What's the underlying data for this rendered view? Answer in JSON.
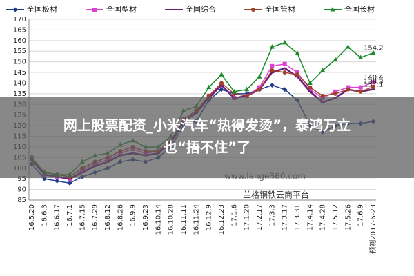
{
  "chart_data": {
    "type": "line",
    "categories": [
      "16.5.20",
      "16.6.3",
      "16.6.17",
      "16.7.1",
      "16.7.15",
      "16.7.29",
      "16.8.12",
      "16.8.26",
      "16.9.9",
      "16.9.23",
      "16.10.14",
      "16.10.28",
      "16.11.11",
      "16.11.24",
      "16.12.9",
      "16.12.23",
      "17.1.6",
      "17.1.20",
      "17.2.17",
      "17.3.3",
      "17.3.17",
      "17.3.31",
      "17.4.14",
      "17.4.28",
      "17.5.12",
      "17.5.26",
      "17.6.9",
      "预测2017-6-23"
    ],
    "series": [
      {
        "name": "全国板材",
        "color": "#1f3d8c",
        "marker": "diamond",
        "values": [
          102,
          95,
          94,
          93,
          96,
          98,
          100,
          103,
          104,
          103,
          105,
          110,
          120,
          122,
          132,
          137,
          135,
          135,
          137,
          139,
          137,
          132,
          120,
          117,
          120,
          121,
          121,
          122
        ]
      },
      {
        "name": "全国型材",
        "color": "#e040d0",
        "marker": "square",
        "values": [
          105,
          97,
          96,
          95,
          99,
          102,
          104,
          107,
          109,
          107,
          108,
          112,
          123,
          127,
          134,
          139,
          133,
          134,
          138,
          148,
          149,
          145,
          137,
          133,
          136,
          138,
          138,
          140.4
        ]
      },
      {
        "name": "全国综合",
        "color": "#6a1f7a",
        "marker": "dash",
        "values": [
          104,
          97,
          96,
          95,
          98,
          101,
          103,
          106,
          107,
          106,
          107,
          112,
          122,
          126,
          133,
          139,
          133,
          134,
          137,
          145,
          147,
          143,
          136,
          131,
          133,
          137,
          136,
          137.1
        ]
      },
      {
        "name": "全国管材",
        "color": "#a0402a",
        "marker": "circle",
        "values": [
          104,
          98,
          97,
          96,
          100,
          103,
          105,
          108,
          110,
          108,
          108,
          113,
          123,
          127,
          134,
          140,
          135,
          134,
          137,
          146,
          145,
          144,
          138,
          134,
          135,
          137,
          136,
          138.3
        ]
      },
      {
        "name": "全国长材",
        "color": "#1a8a2a",
        "marker": "triangle",
        "values": [
          105,
          98,
          97,
          97,
          103,
          106,
          107,
          111,
          113,
          110,
          110,
          115,
          127,
          129,
          138,
          144,
          136,
          137,
          143,
          157,
          159,
          154,
          140,
          146,
          151,
          157,
          152,
          154.2
        ]
      }
    ],
    "ylim": [
      85,
      170
    ],
    "yticks": [
      85,
      90,
      95,
      100,
      105,
      110,
      115,
      120,
      125,
      130,
      135,
      140,
      145,
      150,
      155,
      160,
      165,
      170
    ],
    "grid": true,
    "legend": "top",
    "watermark": "www.lange360.com",
    "source_note": "兰格钢铁云商平台",
    "overlay": [
      "网上股票配资_小米汽车“热得发烫”，泰鸿万立",
      "也“捂不住”了"
    ]
  }
}
